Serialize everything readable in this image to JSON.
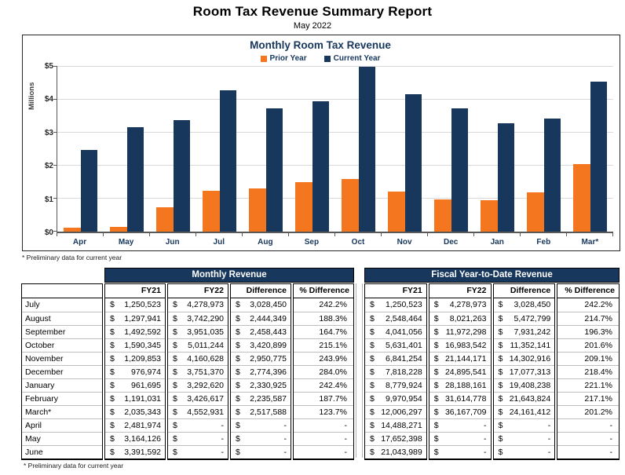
{
  "report": {
    "title": "Room Tax Revenue Summary Report",
    "subtitle": "May 2022",
    "footnote": "* Preliminary data for current year"
  },
  "chart_data": {
    "type": "bar",
    "title": "Monthly Room Tax Revenue",
    "ylabel": "Millions",
    "ylim": [
      0,
      5
    ],
    "y_ticks": [
      "$0",
      "$1",
      "$2",
      "$3",
      "$4",
      "$5"
    ],
    "grid": true,
    "legend_position": "top",
    "categories": [
      "Apr",
      "May",
      "Jun",
      "Jul",
      "Aug",
      "Sep",
      "Oct",
      "Nov",
      "Dec",
      "Jan",
      "Feb",
      "Mar*"
    ],
    "series": [
      {
        "name": "Prior Year",
        "color": "#F4771F",
        "values": [
          0.13,
          0.15,
          0.73,
          1.25,
          1.3,
          1.49,
          1.59,
          1.21,
          0.98,
          0.96,
          1.19,
          2.04
        ]
      },
      {
        "name": "Current Year",
        "color": "#17375D",
        "values": [
          2.48,
          3.16,
          3.39,
          4.28,
          3.74,
          3.95,
          5.01,
          4.16,
          3.75,
          3.29,
          3.43,
          4.55
        ]
      }
    ]
  },
  "tables": {
    "columns": [
      "FY21",
      "FY22",
      "Difference",
      "% Difference"
    ],
    "monthly": {
      "title": "Monthly Revenue",
      "rows": [
        {
          "label": "July",
          "fy21": "1,250,523",
          "fy22": "4,278,973",
          "diff": "3,028,450",
          "pct": "242.2%"
        },
        {
          "label": "August",
          "fy21": "1,297,941",
          "fy22": "3,742,290",
          "diff": "2,444,349",
          "pct": "188.3%"
        },
        {
          "label": "September",
          "fy21": "1,492,592",
          "fy22": "3,951,035",
          "diff": "2,458,443",
          "pct": "164.7%"
        },
        {
          "label": "October",
          "fy21": "1,590,345",
          "fy22": "5,011,244",
          "diff": "3,420,899",
          "pct": "215.1%"
        },
        {
          "label": "November",
          "fy21": "1,209,853",
          "fy22": "4,160,628",
          "diff": "2,950,775",
          "pct": "243.9%"
        },
        {
          "label": "December",
          "fy21": "976,974",
          "fy22": "3,751,370",
          "diff": "2,774,396",
          "pct": "284.0%"
        },
        {
          "label": "January",
          "fy21": "961,695",
          "fy22": "3,292,620",
          "diff": "2,330,925",
          "pct": "242.4%"
        },
        {
          "label": "February",
          "fy21": "1,191,031",
          "fy22": "3,426,617",
          "diff": "2,235,587",
          "pct": "187.7%"
        },
        {
          "label": "March*",
          "fy21": "2,035,343",
          "fy22": "4,552,931",
          "diff": "2,517,588",
          "pct": "123.7%"
        },
        {
          "label": "April",
          "fy21": "2,481,974",
          "fy22": "-",
          "diff": "-",
          "pct": "-"
        },
        {
          "label": "May",
          "fy21": "3,164,126",
          "fy22": "-",
          "diff": "-",
          "pct": "-"
        },
        {
          "label": "June",
          "fy21": "3,391,592",
          "fy22": "-",
          "diff": "-",
          "pct": "-"
        }
      ]
    },
    "ytd": {
      "title": "Fiscal Year-to-Date Revenue",
      "rows": [
        {
          "fy21": "1,250,523",
          "fy22": "4,278,973",
          "diff": "3,028,450",
          "pct": "242.2%"
        },
        {
          "fy21": "2,548,464",
          "fy22": "8,021,263",
          "diff": "5,472,799",
          "pct": "214.7%"
        },
        {
          "fy21": "4,041,056",
          "fy22": "11,972,298",
          "diff": "7,931,242",
          "pct": "196.3%"
        },
        {
          "fy21": "5,631,401",
          "fy22": "16,983,542",
          "diff": "11,352,141",
          "pct": "201.6%"
        },
        {
          "fy21": "6,841,254",
          "fy22": "21,144,171",
          "diff": "14,302,916",
          "pct": "209.1%"
        },
        {
          "fy21": "7,818,228",
          "fy22": "24,895,541",
          "diff": "17,077,313",
          "pct": "218.4%"
        },
        {
          "fy21": "8,779,924",
          "fy22": "28,188,161",
          "diff": "19,408,238",
          "pct": "221.1%"
        },
        {
          "fy21": "9,970,954",
          "fy22": "31,614,778",
          "diff": "21,643,824",
          "pct": "217.1%"
        },
        {
          "fy21": "12,006,297",
          "fy22": "36,167,709",
          "diff": "24,161,412",
          "pct": "201.2%"
        },
        {
          "fy21": "14,488,271",
          "fy22": "-",
          "diff": "-",
          "pct": "-"
        },
        {
          "fy21": "17,652,398",
          "fy22": "-",
          "diff": "-",
          "pct": "-"
        },
        {
          "fy21": "21,043,989",
          "fy22": "-",
          "diff": "-",
          "pct": "-"
        }
      ]
    }
  }
}
